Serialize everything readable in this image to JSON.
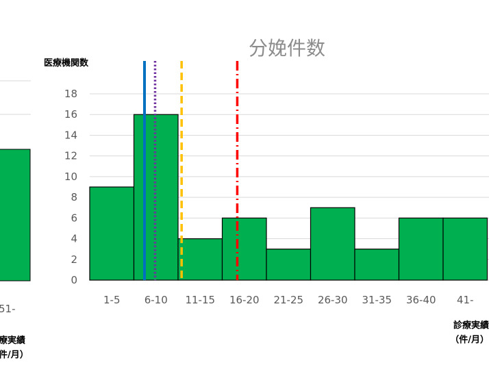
{
  "chart_data": {
    "type": "bar",
    "title": "分娩件数",
    "ylabel": "医療機関数",
    "xlabel_line1": "診療実績",
    "xlabel_line2": "（件/月）",
    "ylim": [
      0,
      18
    ],
    "yticks": [
      0,
      2,
      4,
      6,
      8,
      10,
      12,
      14,
      16,
      18
    ],
    "categories": [
      "1-5",
      "6-10",
      "11-15",
      "16-20",
      "21-25",
      "26-30",
      "31-35",
      "36-40",
      "41-"
    ],
    "values": [
      9,
      16,
      4,
      6,
      3,
      7,
      3,
      6,
      6
    ],
    "grid": true,
    "colors": {
      "bar_fill": "#00b050",
      "bar_stroke": "#000000",
      "grid": "#d9d9d9",
      "line_blue": "#0070c0",
      "line_purple": "#7030a0",
      "line_orange": "#ffc000",
      "line_red": "#ff0000"
    },
    "reference_lines": [
      {
        "style": "solid",
        "color": "#0070c0",
        "x_pos": 6.7
      },
      {
        "style": "dotted",
        "color": "#7030a0",
        "x_pos": 7.9
      },
      {
        "style": "dashed",
        "color": "#ffc000",
        "x_pos": 10.9
      },
      {
        "style": "dash-dot",
        "color": "#ff0000",
        "x_pos": 17.2
      }
    ]
  },
  "left_fragment": {
    "xtick": "51-",
    "xlabel_line1": "療実績",
    "xlabel_line2": "件/月）"
  }
}
